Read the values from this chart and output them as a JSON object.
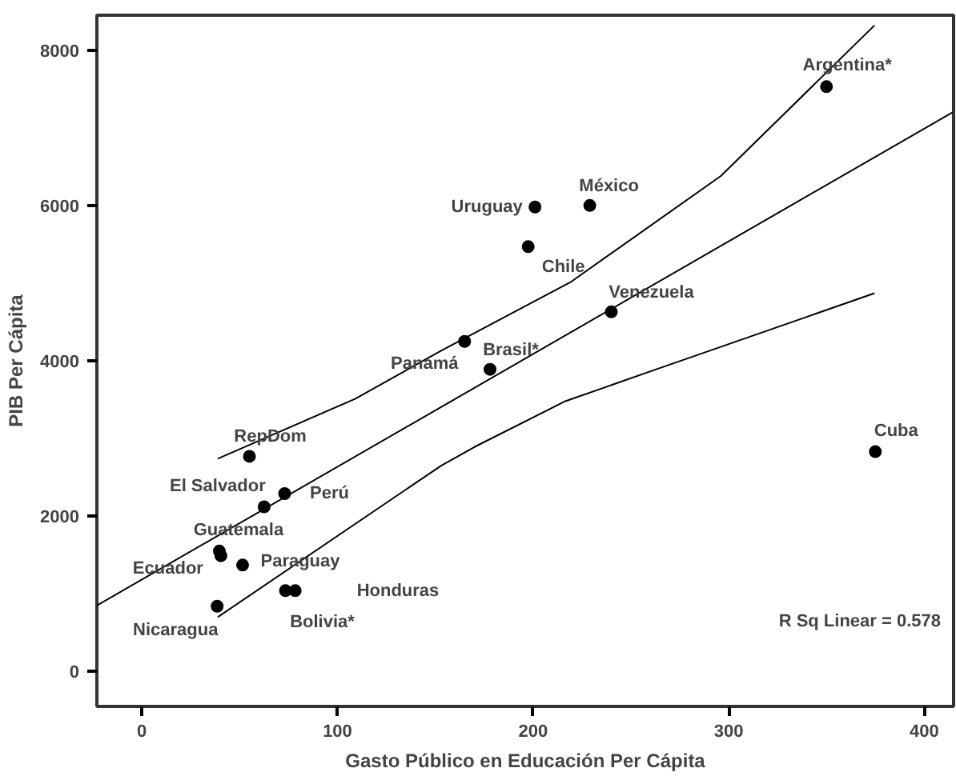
{
  "chart_data": {
    "type": "scatter",
    "xlabel": "Gasto Público en Educación Per Cápita",
    "ylabel": "PIB Per Cápita",
    "xlim": [
      -23,
      415
    ],
    "ylim": [
      -450,
      8450
    ],
    "xticks": [
      0,
      100,
      200,
      300,
      400
    ],
    "yticks": [
      0,
      2000,
      4000,
      6000,
      8000
    ],
    "grid": false,
    "series": [
      {
        "marker": "circle",
        "color": "#000000",
        "x": [
          350,
          229,
          201,
          197.5,
          240,
          165,
          178,
          375,
          55,
          73,
          62.5,
          39.6,
          40.4,
          51.5,
          78.4,
          73.4,
          38.5
        ],
        "values": [
          7530,
          6000,
          5980,
          5470,
          4630,
          4250,
          3890,
          2830,
          2770,
          2290,
          2120,
          1550,
          1490,
          1370,
          1040,
          1040,
          840
        ]
      },
      {
        "type": "line",
        "color": "#000000",
        "x": [
          -23,
          414.5
        ],
        "values": [
          850,
          7200
        ]
      },
      {
        "type": "line",
        "color": "#000000",
        "x": [
          38.8,
          109,
          153,
          219,
          296,
          374.6
        ],
        "values": [
          2740,
          3510,
          4130,
          5010,
          6380,
          8320
        ]
      },
      {
        "type": "line",
        "color": "#000000",
        "x": [
          38.8,
          153,
          170,
          216.5,
          263,
          374.6
        ],
        "values": [
          700,
          2650,
          2890,
          3480,
          3890,
          4870
        ]
      }
    ],
    "annotations": [
      {
        "text": "Argentina*",
        "x": 350,
        "y": 7530
      },
      {
        "text": "México",
        "x": 229,
        "y": 6000
      },
      {
        "text": "Uruguay",
        "x": 201,
        "y": 5980
      },
      {
        "text": "Chile",
        "x": 197.5,
        "y": 5470
      },
      {
        "text": "Venezuela",
        "x": 240,
        "y": 4630
      },
      {
        "text": "Panamá",
        "x": 165,
        "y": 4250
      },
      {
        "text": "Brasil*",
        "x": 178,
        "y": 3890
      },
      {
        "text": "Cuba",
        "x": 375,
        "y": 2830
      },
      {
        "text": "RepDom",
        "x": 55,
        "y": 2770
      },
      {
        "text": "Perú",
        "x": 73,
        "y": 2290
      },
      {
        "text": "El Salvador",
        "x": 62.5,
        "y": 2120
      },
      {
        "text": "Guatemala",
        "x": 39.6,
        "y": 1550
      },
      {
        "text": "Ecuador",
        "x": 40.4,
        "y": 1490
      },
      {
        "text": "Paraguay",
        "x": 51.5,
        "y": 1370
      },
      "Honduras",
      {
        "text": "Bolivia*",
        "x": 73.4,
        "y": 1040
      },
      {
        "text": "Nicaragua",
        "x": 38.5,
        "y": 840
      },
      "R Sq Linear = 0.578"
    ]
  }
}
